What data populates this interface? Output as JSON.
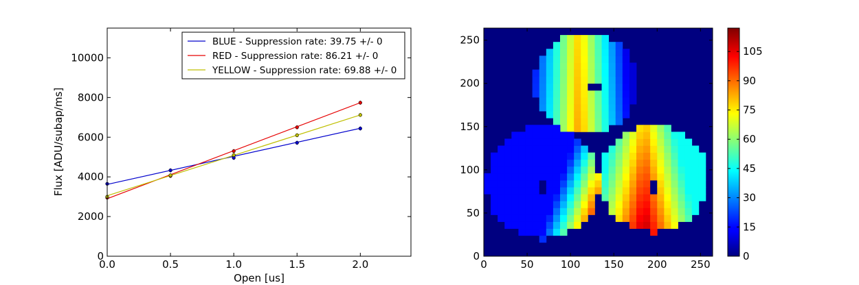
{
  "chart_data": [
    {
      "type": "line",
      "xlabel": "Open [us]",
      "ylabel": "Flux [ADU/subap/ms]",
      "xlim": [
        0,
        2.4
      ],
      "ylim": [
        0,
        11500
      ],
      "xticks": [
        0.0,
        0.5,
        1.0,
        1.5,
        2.0
      ],
      "xtick_labels": [
        "0.0",
        "0.5",
        "1.0",
        "1.5",
        "2.0"
      ],
      "yticks": [
        0,
        2000,
        4000,
        6000,
        8000,
        10000
      ],
      "ytick_labels": [
        "0",
        "2000",
        "4000",
        "6000",
        "8000",
        "10000"
      ],
      "legend_position": "top-right",
      "grid": false,
      "x": [
        0.0,
        0.5,
        1.0,
        1.5,
        2.0
      ],
      "series": [
        {
          "name": "BLUE - Suppression rate: 39.75 +/- 0",
          "color": "#0000cc",
          "points": [
            [
              0.0,
              3650
            ],
            [
              0.5,
              4330
            ],
            [
              1.0,
              4960
            ],
            [
              1.5,
              5720
            ],
            [
              2.0,
              6440
            ]
          ],
          "fit": [
            [
              0.0,
              3620
            ],
            [
              2.0,
              6450
            ]
          ]
        },
        {
          "name": "RED - Suppression rate: 86.21 +/- 0",
          "color": "#e60000",
          "points": [
            [
              0.0,
              2950
            ],
            [
              0.5,
              4050
            ],
            [
              1.0,
              5300
            ],
            [
              1.5,
              6500
            ],
            [
              2.0,
              7740
            ]
          ],
          "fit": [
            [
              0.0,
              2900
            ],
            [
              2.0,
              7740
            ]
          ]
        },
        {
          "name": "YELLOW - Suppression rate: 69.88 +/- 0",
          "color": "#bfbf00",
          "points": [
            [
              0.0,
              3000
            ],
            [
              0.5,
              4080
            ],
            [
              1.0,
              5100
            ],
            [
              1.5,
              6100
            ],
            [
              2.0,
              7120
            ]
          ],
          "fit": [
            [
              0.0,
              3050
            ],
            [
              2.0,
              7120
            ]
          ]
        }
      ]
    },
    {
      "type": "heatmap",
      "xlim": [
        0,
        264
      ],
      "ylim": [
        0,
        264
      ],
      "xticks": [
        0,
        50,
        100,
        150,
        200,
        250
      ],
      "xtick_labels": [
        "0",
        "50",
        "100",
        "150",
        "200",
        "250"
      ],
      "yticks": [
        0,
        50,
        100,
        150,
        200,
        250
      ],
      "ytick_labels": [
        "0",
        "50",
        "100",
        "150",
        "200",
        "250"
      ],
      "colormap": "jet",
      "vmin": 0,
      "vmax": 117,
      "colorbar_ticks": [
        0,
        15,
        30,
        45,
        60,
        75,
        90,
        105
      ],
      "colorbar_tick_labels": [
        "0",
        "15",
        "30",
        "45",
        "60",
        "75",
        "90",
        "105"
      ],
      "pixel_size": 8,
      "background_value": 0,
      "pupils": [
        {
          "cx": 118,
          "cy": 200,
          "r": 60,
          "min": 10,
          "max": 85,
          "peak_x": 110,
          "slope_y": 0.05,
          "dead_pixel": [
            128,
            196
          ]
        },
        {
          "cx": 68,
          "cy": 85,
          "r": 65,
          "min": 15,
          "max": 117,
          "peak_x": 130,
          "slope_y": 0.55,
          "dead_pixel": [
            68,
            80
          ]
        },
        {
          "cx": 196,
          "cy": 90,
          "r": 62,
          "min": 45,
          "max": 112,
          "peak_x": 185,
          "slope_y": 0.25,
          "dead_pixel": [
            196,
            80
          ]
        }
      ]
    }
  ]
}
